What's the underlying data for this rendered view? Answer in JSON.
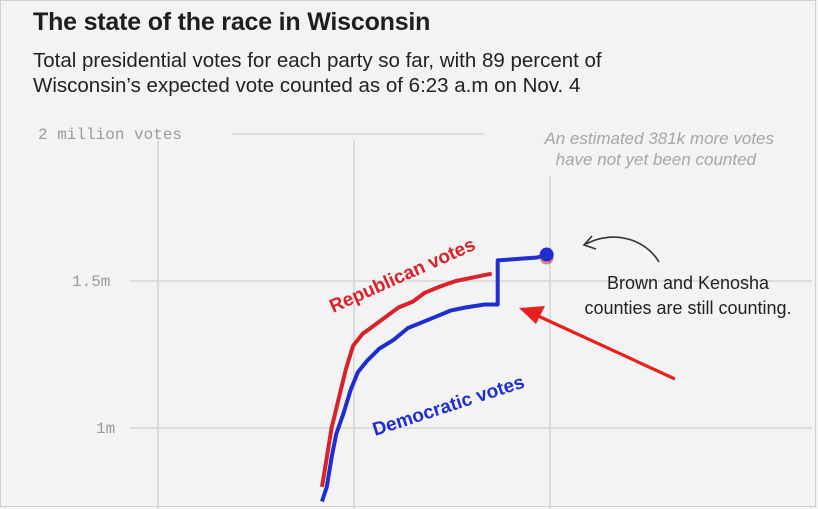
{
  "header": {
    "title": "The state of the race in Wisconsin",
    "subtitle_line1": "Total presidential votes for each party so far, with 89 percent of",
    "subtitle_line2": "Wisconsin’s expected vote counted as of 6:23 a.m on Nov. 4"
  },
  "annotations": {
    "estimate_line1": "An estimated 381k more votes",
    "estimate_line2": "have not yet been counted",
    "callout_line1": "Brown and Kenosha",
    "callout_line2": "counties are still counting."
  },
  "colors": {
    "republican": "#d8232a",
    "democratic": "#1e2ed1",
    "arrow": "#e8211f",
    "grid": "#d6d6d6",
    "background": "#f3f3f3"
  },
  "chart_data": {
    "type": "line",
    "title": "The state of the race in Wisconsin",
    "ylabel": "",
    "y_ticks": [
      {
        "value": 2000000,
        "label": "2 million votes"
      },
      {
        "value": 1500000,
        "label": "1.5m"
      },
      {
        "value": 1000000,
        "label": "1m"
      }
    ],
    "ylim": [
      750000,
      2000000
    ],
    "grid": true,
    "series": [
      {
        "name": "Republican votes",
        "color": "#d8232a",
        "points": [
          [
            0.0,
            0.8
          ],
          [
            0.02,
            0.9
          ],
          [
            0.04,
            1.0
          ],
          [
            0.07,
            1.1
          ],
          [
            0.1,
            1.2
          ],
          [
            0.13,
            1.28
          ],
          [
            0.17,
            1.32
          ],
          [
            0.22,
            1.35
          ],
          [
            0.27,
            1.38
          ],
          [
            0.32,
            1.41
          ],
          [
            0.38,
            1.43
          ],
          [
            0.43,
            1.46
          ],
          [
            0.49,
            1.48
          ],
          [
            0.56,
            1.5
          ],
          [
            0.62,
            1.51
          ],
          [
            0.68,
            1.52
          ],
          [
            0.71,
            1.525
          ]
        ]
      },
      {
        "name": "Democratic votes",
        "color": "#1e2ed1",
        "points": [
          [
            0.0,
            0.75
          ],
          [
            0.02,
            0.8
          ],
          [
            0.04,
            0.9
          ],
          [
            0.06,
            0.98
          ],
          [
            0.09,
            1.05
          ],
          [
            0.12,
            1.13
          ],
          [
            0.15,
            1.19
          ],
          [
            0.19,
            1.23
          ],
          [
            0.24,
            1.27
          ],
          [
            0.3,
            1.3
          ],
          [
            0.36,
            1.34
          ],
          [
            0.42,
            1.36
          ],
          [
            0.48,
            1.38
          ],
          [
            0.54,
            1.4
          ],
          [
            0.6,
            1.41
          ],
          [
            0.68,
            1.42
          ],
          [
            0.735,
            1.42
          ],
          [
            0.735,
            1.57
          ],
          [
            0.9,
            1.58
          ],
          [
            0.94,
            1.59
          ]
        ]
      }
    ],
    "latest_point": {
      "series": "Democratic votes",
      "value": 1.59
    }
  }
}
